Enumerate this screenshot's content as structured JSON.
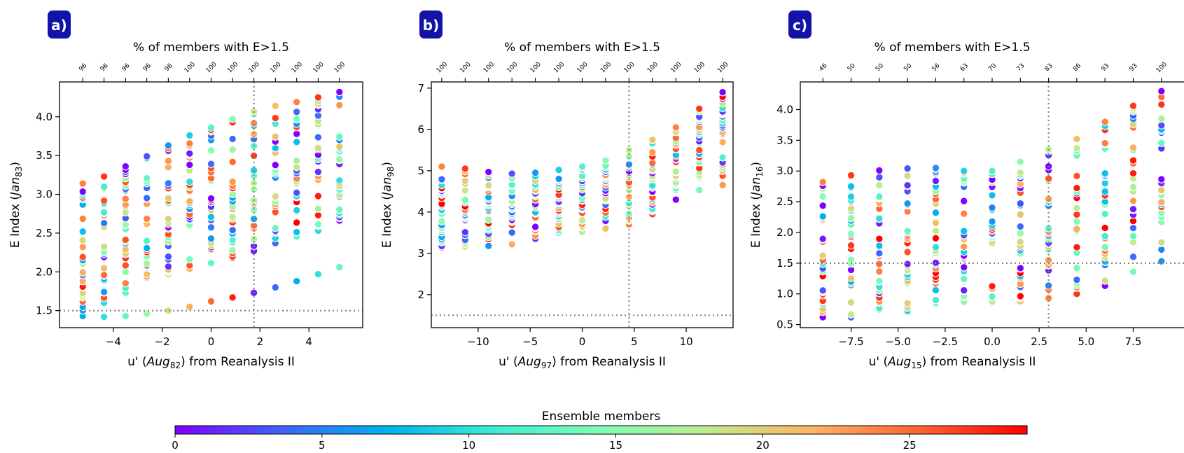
{
  "colors": {
    "badge": "#1313a8",
    "refline": "#888888"
  },
  "colormap": [
    "#8000ff",
    "#4062fa",
    "#01b2ed",
    "#40ecd4",
    "#80ffb4",
    "#c0eb8d",
    "#ffb360",
    "#ff6130",
    "#ff0000"
  ],
  "colorbar": {
    "label": "Ensemble members",
    "ticks": [
      "0",
      "5",
      "10",
      "15",
      "20",
      "25"
    ],
    "range": [
      0,
      29
    ]
  },
  "chart_data": [
    {
      "type": "scatter",
      "panel_label": "a)",
      "top_title": "% of members with E>1.5",
      "xlabel_prefix": "u' (",
      "xlabel_italic": "Aug",
      "xlabel_sub": "82",
      "xlabel_suffix": ") from Reanalysis II",
      "ylabel_prefix": "E Index (",
      "ylabel_italic": "Jan",
      "ylabel_sub": "83",
      "ylabel_suffix": ")",
      "xlim": [
        -6.2,
        6.2
      ],
      "ylim": [
        1.28,
        4.45
      ],
      "xticks": [
        -4,
        -2,
        0,
        2,
        4
      ],
      "xtick_labels": [
        "−4",
        "−2",
        "0",
        "2",
        "4"
      ],
      "yticks": [
        1.5,
        2.0,
        2.5,
        3.0,
        3.5,
        4.0
      ],
      "ytick_labels": [
        "1.5",
        "2.0",
        "2.5",
        "3.0",
        "3.5",
        "4.0"
      ],
      "hline": 1.5,
      "vline": 1.75,
      "x": [
        -5.25,
        -4.38,
        -3.5,
        -2.63,
        -1.75,
        -0.88,
        0.0,
        0.88,
        1.75,
        2.63,
        3.5,
        4.38,
        5.25
      ],
      "top_labels": [
        "96",
        "96",
        "96",
        "96",
        "96",
        "100",
        "100",
        "100",
        "100",
        "100",
        "100",
        "100",
        "100"
      ],
      "low_member": [
        1.43,
        1.42,
        1.43,
        1.46,
        1.5,
        1.55,
        1.62,
        1.67,
        1.73,
        1.8,
        1.88,
        1.97,
        2.06
      ],
      "lo": [
        1.5,
        1.6,
        1.73,
        1.92,
        1.97,
        2.04,
        2.11,
        2.18,
        2.27,
        2.37,
        2.45,
        2.53,
        2.64
      ],
      "hi": [
        3.14,
        3.23,
        3.36,
        3.49,
        3.63,
        3.76,
        3.86,
        3.97,
        4.07,
        4.14,
        4.19,
        4.25,
        4.32
      ]
    },
    {
      "type": "scatter",
      "panel_label": "b)",
      "top_title": "% of members with E>1.5",
      "xlabel_prefix": "u' (",
      "xlabel_italic": "Aug",
      "xlabel_sub": "97",
      "xlabel_suffix": ") from Reanalysis II",
      "ylabel_prefix": "E Index (",
      "ylabel_italic": "Jan",
      "ylabel_sub": "98",
      "ylabel_suffix": ")",
      "xlim": [
        -14.5,
        14.5
      ],
      "ylim": [
        1.2,
        7.15
      ],
      "xticks": [
        -10,
        -5,
        0,
        5,
        10
      ],
      "xtick_labels": [
        "−10",
        "−5",
        "0",
        "5",
        "10"
      ],
      "yticks": [
        2,
        3,
        4,
        5,
        6,
        7
      ],
      "ytick_labels": [
        "2",
        "3",
        "4",
        "5",
        "6",
        "7"
      ],
      "hline": 1.5,
      "vline": 4.5,
      "x": [
        -13.5,
        -11.25,
        -9.0,
        -6.75,
        -4.5,
        -2.25,
        0.0,
        2.25,
        4.5,
        6.75,
        9.0,
        11.25,
        13.5
      ],
      "top_labels": [
        "100",
        "100",
        "100",
        "100",
        "100",
        "100",
        "100",
        "100",
        "100",
        "100",
        "100",
        "100",
        "100"
      ],
      "low_member": null,
      "lo": [
        3.15,
        3.15,
        3.18,
        3.2,
        3.35,
        3.5,
        3.52,
        3.6,
        3.7,
        3.95,
        4.3,
        4.5,
        4.65
      ],
      "hi": [
        5.1,
        5.05,
        4.97,
        4.93,
        4.95,
        5.02,
        5.1,
        5.25,
        5.5,
        5.75,
        6.05,
        6.5,
        6.9
      ]
    },
    {
      "type": "scatter",
      "panel_label": "c)",
      "top_title": "% of members with E>1.5",
      "xlabel_prefix": "u' (",
      "xlabel_italic": "Aug",
      "xlabel_sub": "15",
      "xlabel_suffix": ") from Reanalysis II",
      "ylabel_prefix": "E Index (",
      "ylabel_italic": "Jan",
      "ylabel_sub": "16",
      "ylabel_suffix": ")",
      "xlim": [
        -10.2,
        10.2
      ],
      "ylim": [
        0.45,
        4.45
      ],
      "xticks": [
        -7.5,
        -5.0,
        -2.5,
        0.0,
        2.5,
        5.0,
        7.5
      ],
      "xtick_labels": [
        "−7.5",
        "−5.0",
        "−2.5",
        "0.0",
        "2.5",
        "5.0",
        "7.5"
      ],
      "yticks": [
        0.5,
        1.0,
        1.5,
        2.0,
        2.5,
        3.0,
        3.5,
        4.0
      ],
      "ytick_labels": [
        "0.5",
        "1.0",
        "1.5",
        "2.0",
        "2.5",
        "3.0",
        "3.5",
        "4.0"
      ],
      "hline": 1.5,
      "vline": 3.0,
      "x": [
        -9.0,
        -7.5,
        -6.0,
        -4.5,
        -3.0,
        -1.5,
        0.0,
        1.5,
        3.0,
        4.5,
        6.0,
        7.5,
        9.0
      ],
      "top_labels": [
        "46",
        "50",
        "50",
        "50",
        "56",
        "63",
        "70",
        "73",
        "83",
        "86",
        "93",
        "93",
        "100"
      ],
      "low_member": null,
      "lo": [
        0.62,
        0.62,
        0.75,
        0.72,
        0.85,
        0.87,
        0.87,
        0.88,
        0.93,
        1.0,
        1.13,
        1.35,
        1.53
      ],
      "hi": [
        2.82,
        2.93,
        3.01,
        3.04,
        3.05,
        3.0,
        3.0,
        3.15,
        3.35,
        3.52,
        3.8,
        4.06,
        4.3
      ]
    }
  ]
}
